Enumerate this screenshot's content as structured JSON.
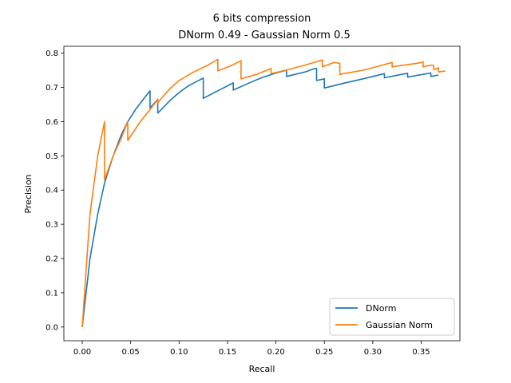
{
  "chart_data": {
    "type": "line",
    "title": "6 bits compression",
    "subtitle": "DNorm 0.49 - Gaussian Norm 0.5",
    "xlabel": "Recall",
    "ylabel": "Precision",
    "xlim": [
      -0.019,
      0.39
    ],
    "ylim": [
      -0.04,
      0.82
    ],
    "xticks": [
      "0.00",
      "0.05",
      "0.10",
      "0.15",
      "0.20",
      "0.25",
      "0.30",
      "0.35"
    ],
    "xtick_values": [
      0,
      0.05,
      0.1,
      0.15,
      0.2,
      0.25,
      0.3,
      0.35
    ],
    "yticks": [
      "0.0",
      "0.1",
      "0.2",
      "0.3",
      "0.4",
      "0.5",
      "0.6",
      "0.7",
      "0.8"
    ],
    "ytick_values": [
      0,
      0.1,
      0.2,
      0.3,
      0.4,
      0.5,
      0.6,
      0.7,
      0.8
    ],
    "grid": false,
    "legend_position": "lower-right",
    "series": [
      {
        "name": "DNorm",
        "color": "#1f77b4",
        "x": [
          0,
          0.008,
          0.016,
          0.023,
          0.032,
          0.04,
          0.047,
          0.055,
          0.063,
          0.07,
          0.07,
          0.078,
          0.078,
          0.09,
          0.1,
          0.11,
          0.12,
          0.125,
          0.125,
          0.14,
          0.156,
          0.156,
          0.17,
          0.185,
          0.2,
          0.211,
          0.211,
          0.23,
          0.24,
          0.242,
          0.242,
          0.25,
          0.25,
          0.27,
          0.29,
          0.312,
          0.312,
          0.33,
          0.336,
          0.336,
          0.35,
          0.36,
          0.36,
          0.368
        ],
        "y": [
          0,
          0.2,
          0.33,
          0.42,
          0.5,
          0.56,
          0.6,
          0.635,
          0.665,
          0.69,
          0.64,
          0.665,
          0.625,
          0.66,
          0.685,
          0.705,
          0.72,
          0.727,
          0.668,
          0.69,
          0.713,
          0.692,
          0.71,
          0.728,
          0.742,
          0.75,
          0.732,
          0.745,
          0.755,
          0.755,
          0.72,
          0.725,
          0.698,
          0.712,
          0.725,
          0.74,
          0.728,
          0.738,
          0.741,
          0.73,
          0.737,
          0.742,
          0.732,
          0.736
        ]
      },
      {
        "name": "Gaussian Norm",
        "color": "#ff7f0e",
        "x": [
          0,
          0.008,
          0.016,
          0.023,
          0.023,
          0.032,
          0.04,
          0.047,
          0.047,
          0.06,
          0.07,
          0.078,
          0.078,
          0.09,
          0.1,
          0.115,
          0.13,
          0.14,
          0.14,
          0.155,
          0.164,
          0.164,
          0.18,
          0.195,
          0.195,
          0.21,
          0.23,
          0.248,
          0.248,
          0.26,
          0.266,
          0.266,
          0.29,
          0.31,
          0.32,
          0.32,
          0.34,
          0.35,
          0.352,
          0.352,
          0.36,
          0.363,
          0.363,
          0.368,
          0.368,
          0.375
        ],
        "y": [
          0,
          0.33,
          0.5,
          0.6,
          0.43,
          0.5,
          0.55,
          0.6,
          0.545,
          0.6,
          0.635,
          0.665,
          0.655,
          0.695,
          0.72,
          0.745,
          0.765,
          0.782,
          0.748,
          0.765,
          0.778,
          0.725,
          0.738,
          0.755,
          0.74,
          0.75,
          0.765,
          0.78,
          0.76,
          0.773,
          0.77,
          0.738,
          0.75,
          0.765,
          0.773,
          0.76,
          0.768,
          0.772,
          0.775,
          0.76,
          0.765,
          0.764,
          0.752,
          0.757,
          0.745,
          0.748
        ]
      }
    ]
  }
}
